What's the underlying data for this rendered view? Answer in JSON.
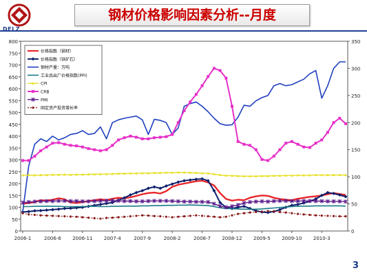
{
  "header": {
    "title": "钢材价格影响因素分析--月度",
    "logo_text": "DFLZ",
    "page_number": "3"
  },
  "colors": {
    "title_text": "#cc0000",
    "rule": "#1f3f93"
  },
  "chart_data": {
    "type": "line",
    "title": "",
    "xlabel": "",
    "ylabel": "",
    "ylim_left": [
      0,
      800
    ],
    "ylim_right": [
      0,
      350
    ],
    "yticks_left": [
      "0",
      "50",
      "100",
      "150",
      "200",
      "250",
      "300",
      "350",
      "400",
      "450",
      "500",
      "550",
      "600",
      "650",
      "700",
      "750",
      "800"
    ],
    "yticks_right": [
      "0",
      "50",
      "100",
      "150",
      "200",
      "250",
      "300",
      "350"
    ],
    "x_tick_labels": [
      "2006-1",
      "2006-6",
      "2006-11",
      "2007-4",
      "2007-9",
      "2008-2",
      "2008-7",
      "2008-12",
      "2009-5",
      "2009-10",
      "2010-3"
    ],
    "x_tick_index": [
      0,
      5,
      10,
      15,
      20,
      25,
      30,
      35,
      40,
      45,
      50
    ],
    "n_points": 55,
    "grid": false,
    "legend_position": "top-left",
    "series": [
      {
        "name": "价格指数（钢材）",
        "axis": "left",
        "color": "#e8262a",
        "marker": "none",
        "width": 2.4,
        "values": [
          115,
          118,
          122,
          130,
          128,
          132,
          138,
          134,
          120,
          118,
          122,
          126,
          130,
          134,
          130,
          136,
          140,
          138,
          142,
          148,
          155,
          160,
          162,
          158,
          168,
          186,
          195,
          200,
          205,
          210,
          212,
          205,
          192,
          160,
          135,
          128,
          132,
          130,
          140,
          146,
          150,
          148,
          140,
          135,
          132,
          130,
          136,
          140,
          144,
          146,
          150,
          155,
          160,
          156,
          152
        ]
      },
      {
        "name": "价格指数（铁矿石）",
        "axis": "left",
        "color": "#0e1f6b",
        "marker": "diamond",
        "width": 2.0,
        "values": [
          80,
          82,
          85,
          86,
          88,
          90,
          92,
          95,
          96,
          98,
          100,
          104,
          108,
          112,
          116,
          120,
          130,
          140,
          152,
          162,
          170,
          180,
          186,
          180,
          190,
          198,
          206,
          212,
          215,
          218,
          220,
          212,
          170,
          120,
          100,
          95,
          100,
          104,
          95,
          85,
          80,
          78,
          82,
          90,
          100,
          108,
          112,
          118,
          125,
          135,
          150,
          162,
          158,
          152,
          145
        ]
      },
      {
        "name": "钢材产量：万吨",
        "axis": "right",
        "color": "#1f3fbf",
        "marker": "none",
        "width": 1.6,
        "values": [
          35,
          120,
          160,
          170,
          165,
          175,
          168,
          172,
          178,
          180,
          185,
          178,
          180,
          192,
          170,
          200,
          205,
          208,
          210,
          212,
          205,
          178,
          206,
          204,
          200,
          178,
          190,
          230,
          235,
          238,
          230,
          220,
          208,
          198,
          195,
          196,
          210,
          232,
          230,
          240,
          246,
          250,
          268,
          272,
          268,
          270,
          275,
          280,
          290,
          296,
          245,
          268,
          300,
          312,
          312
        ]
      },
      {
        "name": "工业品出厂价格指数(PPI)",
        "axis": "left",
        "color": "#1a7a86",
        "marker": "none",
        "width": 1.6,
        "values": [
          103,
          103,
          104,
          104,
          105,
          104,
          104,
          103,
          103,
          103,
          103,
          104,
          104,
          103,
          103,
          104,
          104,
          105,
          105,
          105,
          106,
          106,
          107,
          107,
          108,
          108,
          109,
          109,
          110,
          109,
          108,
          107,
          103,
          98,
          95,
          94,
          93,
          92,
          92,
          92,
          93,
          95,
          97,
          99,
          101,
          103,
          104,
          105,
          105,
          106,
          106,
          106,
          106,
          106,
          105
        ]
      },
      {
        "name": "CPI",
        "axis": "left",
        "color": "#e6e020",
        "marker": "triangle",
        "width": 1.4,
        "values": [
          235,
          236,
          235,
          236,
          236,
          237,
          237,
          238,
          237,
          238,
          238,
          239,
          239,
          240,
          240,
          241,
          242,
          242,
          243,
          243,
          244,
          244,
          245,
          245,
          246,
          246,
          247,
          247,
          246,
          245,
          244,
          243,
          240,
          236,
          234,
          233,
          232,
          231,
          231,
          231,
          232,
          232,
          233,
          233,
          234,
          234,
          235,
          235,
          235,
          236,
          236,
          236,
          236,
          236,
          236
        ]
      },
      {
        "name": "CRB",
        "axis": "right",
        "color": "#e630c8",
        "marker": "square",
        "width": 2.0,
        "values": [
          130,
          130,
          138,
          148,
          155,
          162,
          163,
          160,
          158,
          157,
          155,
          152,
          150,
          148,
          150,
          158,
          168,
          172,
          175,
          173,
          170,
          170,
          172,
          173,
          174,
          178,
          200,
          222,
          238,
          252,
          268,
          285,
          300,
          296,
          282,
          230,
          165,
          160,
          158,
          150,
          132,
          130,
          138,
          150,
          162,
          165,
          160,
          155,
          154,
          162,
          168,
          182,
          200,
          208,
          198
        ]
      },
      {
        "name": "PMI",
        "axis": "left",
        "color": "#5a1a8a",
        "marker": "star",
        "width": 1.4,
        "values": [
          120,
          122,
          124,
          125,
          126,
          126,
          127,
          127,
          126,
          126,
          125,
          125,
          126,
          127,
          128,
          128,
          127,
          126,
          126,
          125,
          125,
          126,
          127,
          127,
          127,
          126,
          125,
          124,
          124,
          123,
          123,
          122,
          115,
          105,
          100,
          104,
          110,
          118,
          122,
          124,
          125,
          124,
          126,
          127,
          127,
          126,
          126,
          127,
          127,
          126,
          126,
          125,
          125,
          125,
          124
        ]
      },
      {
        "name": "固定资产投资增长率",
        "axis": "left",
        "color": "#8a1a1a",
        "marker": "dot",
        "width": 1.2,
        "values": [
          75,
          70,
          68,
          66,
          65,
          64,
          63,
          62,
          61,
          60,
          58,
          56,
          54,
          52,
          55,
          56,
          58,
          60,
          62,
          64,
          66,
          65,
          63,
          62,
          60,
          58,
          60,
          62,
          64,
          66,
          64,
          62,
          60,
          58,
          60,
          66,
          72,
          75,
          78,
          80,
          82,
          84,
          83,
          80,
          78,
          75,
          72,
          70,
          68,
          66,
          65,
          64,
          63,
          62,
          62
        ]
      }
    ]
  }
}
